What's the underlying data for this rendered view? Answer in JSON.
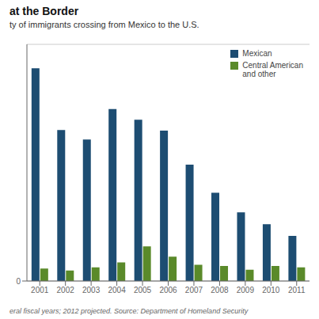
{
  "chart_data": {
    "type": "bar",
    "title": "at the Border",
    "subtitle": "ty of immigrants crossing from Mexico to the U.S.",
    "annotations": [
      "eral fiscal years; 2012 projected. Source: Department of Homeland Security"
    ],
    "categories": [
      "2001",
      "2002",
      "2003",
      "2004",
      "2005",
      "2006",
      "2007",
      "2008",
      "2009",
      "2010",
      "2011"
    ],
    "series": [
      {
        "name": "Mexican",
        "color": "#1d4d72",
        "values": [
          854000,
          606000,
          568000,
          690000,
          647000,
          604000,
          467000,
          354000,
          276000,
          228000,
          181000
        ]
      },
      {
        "name": "Central American\nand other",
        "color": "#5a8a2a",
        "values": [
          50000,
          42000,
          55000,
          75000,
          139000,
          98000,
          65000,
          60000,
          45000,
          60000,
          55000
        ]
      }
    ],
    "ylim": [
      0,
      950000
    ],
    "yticks": [
      0
    ],
    "grid": true,
    "legend": "upper right"
  }
}
